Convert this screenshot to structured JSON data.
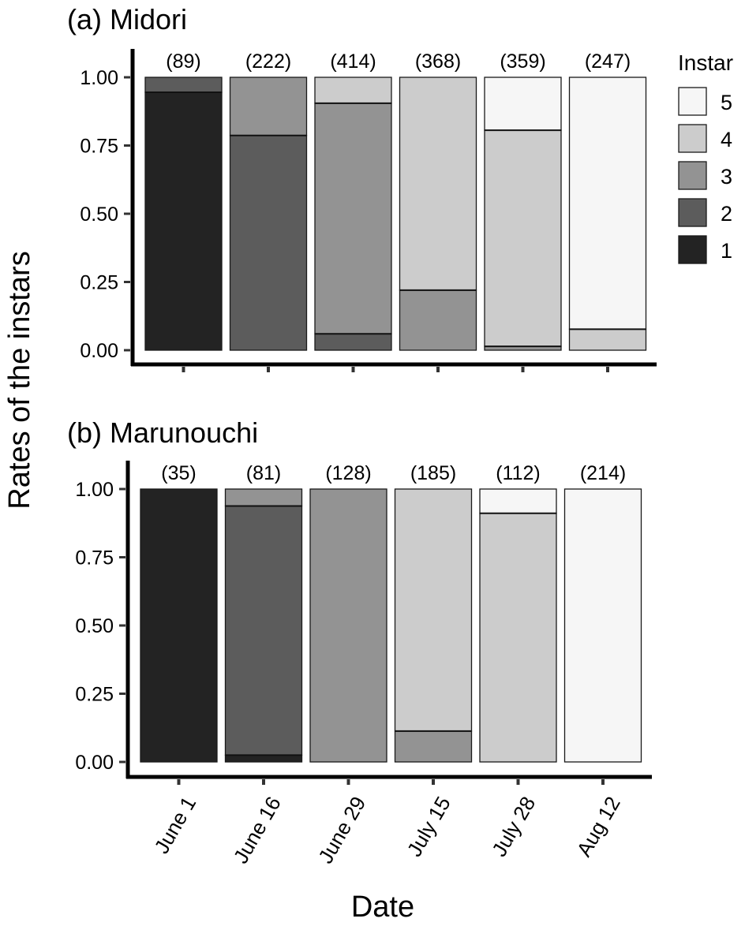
{
  "chart_data": {
    "type": "bar",
    "stacked": true,
    "xlabel": "Date",
    "ylabel": "Rates of the instars",
    "ylim": [
      0,
      1
    ],
    "yticks": [
      "0.00",
      "0.25",
      "0.50",
      "0.75",
      "1.00"
    ],
    "categories": [
      "June 1",
      "June 16",
      "June 29",
      "July 15",
      "July 28",
      "Aug 12"
    ],
    "legend": {
      "title": "Instar",
      "placement": "right",
      "entries": [
        "5",
        "4",
        "3",
        "2",
        "1"
      ]
    },
    "instar_colors": {
      "1": "#232323",
      "2": "#5c5c5c",
      "3": "#939393",
      "4": "#cccccc",
      "5": "#f6f6f6"
    },
    "panels": [
      {
        "title": "(a) Midori",
        "counts": [
          "(89)",
          "(222)",
          "(414)",
          "(368)",
          "(359)",
          "(247)"
        ],
        "series": [
          {
            "name": "1",
            "values": [
              0.945,
              0.0,
              0.0,
              0.0,
              0.0,
              0.0
            ]
          },
          {
            "name": "2",
            "values": [
              0.055,
              0.787,
              0.06,
              0.0,
              0.0,
              0.0
            ]
          },
          {
            "name": "3",
            "values": [
              0.0,
              0.213,
              0.845,
              0.22,
              0.014,
              0.0
            ]
          },
          {
            "name": "4",
            "values": [
              0.0,
              0.0,
              0.095,
              0.78,
              0.792,
              0.077
            ]
          },
          {
            "name": "5",
            "values": [
              0.0,
              0.0,
              0.0,
              0.0,
              0.194,
              0.923
            ]
          }
        ]
      },
      {
        "title": "(b) Marunouchi",
        "counts": [
          "(35)",
          "(81)",
          "(128)",
          "(185)",
          "(112)",
          "(214)"
        ],
        "series": [
          {
            "name": "1",
            "values": [
              1.0,
              0.025,
              0.0,
              0.0,
              0.0,
              0.0
            ]
          },
          {
            "name": "2",
            "values": [
              0.0,
              0.913,
              0.0,
              0.0,
              0.0,
              0.0
            ]
          },
          {
            "name": "3",
            "values": [
              0.0,
              0.062,
              1.0,
              0.113,
              0.0,
              0.0
            ]
          },
          {
            "name": "4",
            "values": [
              0.0,
              0.0,
              0.0,
              0.887,
              0.911,
              0.0
            ]
          },
          {
            "name": "5",
            "values": [
              0.0,
              0.0,
              0.0,
              0.0,
              0.089,
              1.0
            ]
          }
        ]
      }
    ]
  }
}
